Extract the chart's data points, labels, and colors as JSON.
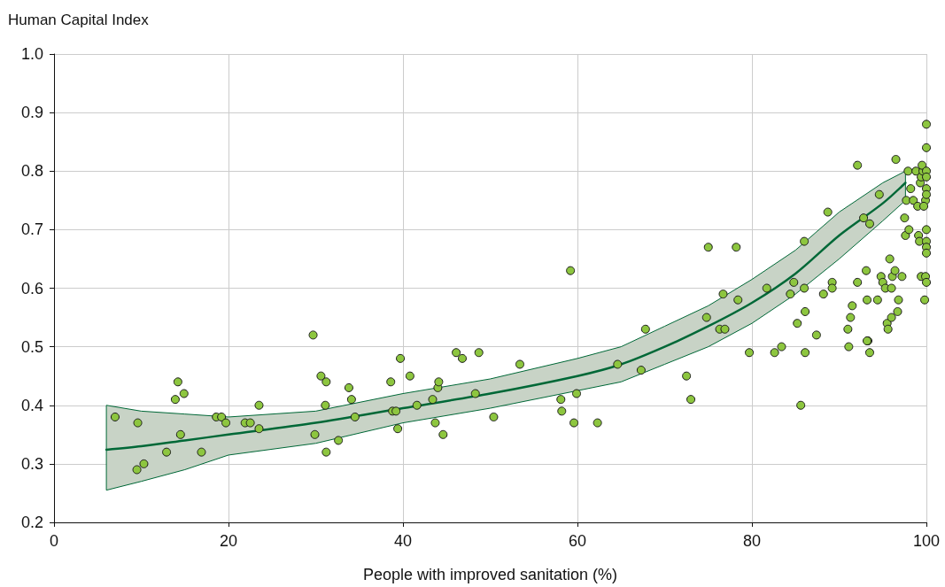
{
  "chart_data": {
    "type": "scatter",
    "xlabel": "People with improved sanitation (%)",
    "ylabel": "Human Capital Index",
    "xlim": [
      0,
      100
    ],
    "xticks": [
      0,
      20,
      40,
      60,
      80,
      100
    ],
    "ylim": [
      0.2,
      1.0
    ],
    "yticks": [
      0.2,
      0.3,
      0.4,
      0.5,
      0.6,
      0.7,
      0.8,
      0.9,
      {
        "value": 1.0,
        "label": "1.0"
      }
    ],
    "grid": true,
    "marker": "circle",
    "series": [
      {
        "color": "#8dc63f",
        "x": [
          7.0,
          9.6,
          9.5,
          10.3,
          12.9,
          13.9,
          14.2,
          14.5,
          14.9,
          16.9,
          18.6,
          19.2,
          19.7,
          21.9,
          22.5,
          23.5,
          23.5,
          29.7,
          29.9,
          30.6,
          31.2,
          31.1,
          31.2,
          32.6,
          33.8,
          34.1,
          34.5,
          38.6,
          38.8,
          39.2,
          39.4,
          39.7,
          40.8,
          41.6,
          43.4,
          43.7,
          44.0,
          44.1,
          44.6,
          46.1,
          46.8,
          48.7,
          48.3,
          50.4,
          53.4,
          58.1,
          58.2,
          59.2,
          59.6,
          59.9,
          62.3,
          64.6,
          67.3,
          67.8,
          72.5,
          73.0,
          75.0,
          74.8,
          76.7,
          76.3,
          76.9,
          78.2,
          78.4,
          79.7,
          81.7,
          82.6,
          83.4,
          84.4,
          84.8,
          85.2,
          85.6,
          86.0,
          86.0,
          86.1,
          86.1,
          87.4,
          88.2,
          88.7,
          89.2,
          89.2,
          92.1,
          91.0,
          91.3,
          91.5,
          91.1,
          92.1,
          92.8,
          93.1,
          93.3,
          93.5,
          93.2,
          93.5,
          93.2,
          94.4,
          94.6,
          94.8,
          95.0,
          95.3,
          95.5,
          95.6,
          96.0,
          96.0,
          96.1,
          95.8,
          96.4,
          96.5,
          96.8,
          96.7,
          97.2,
          97.5,
          97.6,
          97.7,
          97.9,
          98.0,
          98.2,
          98.5,
          98.8,
          99.0,
          99.1,
          99.2,
          99.3,
          99.4,
          99.4,
          99.6,
          99.5,
          99.9,
          99.9,
          100.0,
          100.0,
          100.0,
          100.0,
          100.0,
          100.0,
          100.0,
          100.0,
          100.0,
          100.0,
          100.0,
          99.8,
          99.7
        ],
        "values": [
          0.38,
          0.37,
          0.29,
          0.3,
          0.32,
          0.41,
          0.44,
          0.35,
          0.42,
          0.32,
          0.38,
          0.38,
          0.37,
          0.37,
          0.37,
          0.4,
          0.36,
          0.52,
          0.35,
          0.45,
          0.44,
          0.4,
          0.32,
          0.34,
          0.43,
          0.41,
          0.38,
          0.44,
          0.39,
          0.39,
          0.36,
          0.48,
          0.45,
          0.4,
          0.41,
          0.37,
          0.43,
          0.44,
          0.35,
          0.49,
          0.48,
          0.49,
          0.42,
          0.38,
          0.47,
          0.41,
          0.39,
          0.63,
          0.37,
          0.42,
          0.37,
          0.47,
          0.46,
          0.53,
          0.45,
          0.41,
          0.67,
          0.55,
          0.59,
          0.53,
          0.53,
          0.67,
          0.58,
          0.49,
          0.6,
          0.49,
          0.5,
          0.59,
          0.61,
          0.54,
          0.4,
          0.68,
          0.6,
          0.56,
          0.49,
          0.52,
          0.59,
          0.73,
          0.61,
          0.6,
          0.81,
          0.53,
          0.55,
          0.57,
          0.5,
          0.61,
          0.72,
          0.63,
          0.51,
          0.49,
          0.51,
          0.71,
          0.58,
          0.58,
          0.76,
          0.62,
          0.61,
          0.6,
          0.54,
          0.53,
          0.6,
          0.55,
          0.62,
          0.65,
          0.63,
          0.82,
          0.58,
          0.56,
          0.62,
          0.72,
          0.69,
          0.75,
          0.8,
          0.7,
          0.77,
          0.75,
          0.8,
          0.74,
          0.69,
          0.68,
          0.78,
          0.62,
          0.79,
          0.8,
          0.81,
          0.75,
          0.62,
          0.88,
          0.84,
          0.8,
          0.79,
          0.77,
          0.76,
          0.7,
          0.68,
          0.67,
          0.66,
          0.61,
          0.58,
          0.74
        ]
      },
      {
        "type": "line",
        "color": "#006837",
        "line_style": "solid",
        "marker": "none",
        "x": [
          6,
          10,
          15,
          20,
          30,
          40,
          50,
          60,
          65,
          70,
          75,
          80,
          85,
          90,
          95,
          97.6
        ],
        "values": [
          0.324,
          0.33,
          0.34,
          0.35,
          0.37,
          0.395,
          0.42,
          0.45,
          0.47,
          0.5,
          0.535,
          0.575,
          0.625,
          0.69,
          0.745,
          0.78
        ],
        "lower": [
          0.255,
          0.27,
          0.29,
          0.315,
          0.335,
          0.37,
          0.395,
          0.425,
          0.44,
          0.47,
          0.5,
          0.54,
          0.59,
          0.65,
          0.715,
          0.75
        ],
        "upper": [
          0.4,
          0.39,
          0.385,
          0.38,
          0.39,
          0.42,
          0.445,
          0.48,
          0.5,
          0.535,
          0.57,
          0.615,
          0.665,
          0.73,
          0.78,
          0.8
        ]
      }
    ]
  }
}
